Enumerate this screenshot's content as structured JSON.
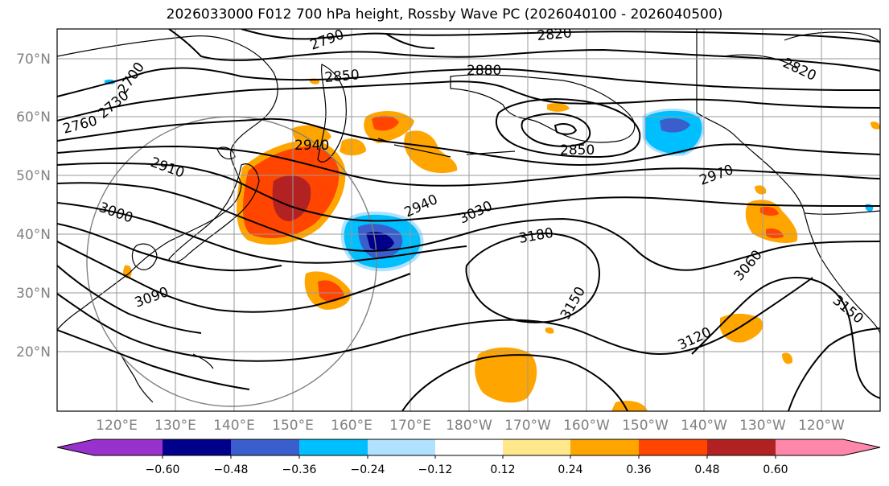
{
  "title": "2026033000 F012 700 hPa height, Rossby Wave PC (2026040100 - 2026040500)",
  "map": {
    "lat_ticks": [
      "70°N",
      "60°N",
      "50°N",
      "40°N",
      "30°N",
      "20°N"
    ],
    "lon_ticks": [
      "120°E",
      "130°E",
      "140°E",
      "150°E",
      "160°E",
      "170°E",
      "180°W",
      "170°W",
      "160°W",
      "150°W",
      "140°W",
      "130°W",
      "120°W"
    ],
    "contour_labels": [
      "2790",
      "2820",
      "2700",
      "2730",
      "2760",
      "2850",
      "2880",
      "2820",
      "2940",
      "2850",
      "2910",
      "2970",
      "3000",
      "2940",
      "3030",
      "3180",
      "3060",
      "3090",
      "3150",
      "3120",
      "3150"
    ]
  },
  "colorbar": {
    "ticks": [
      "−0.60",
      "−0.48",
      "−0.36",
      "−0.24",
      "−0.12",
      "0.12",
      "0.24",
      "0.36",
      "0.48",
      "0.60"
    ],
    "colors": [
      "#9932CC",
      "#00008B",
      "#3A5FCD",
      "#00BFFF",
      "#B0E2FF",
      "#FFFFFF",
      "#FFE88C",
      "#FFA500",
      "#FF4500",
      "#B22222",
      "#FF88AA"
    ]
  }
}
